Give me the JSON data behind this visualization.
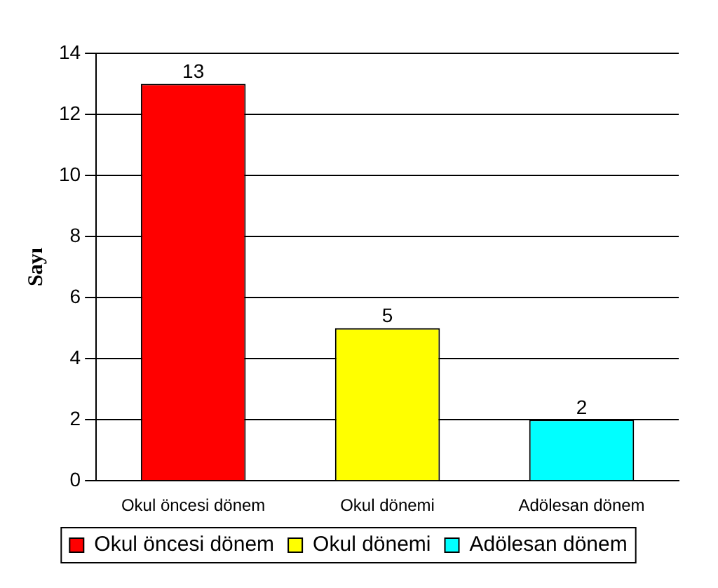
{
  "chart_data": {
    "type": "bar",
    "ylabel": "Sayı",
    "categories": [
      "Okul öncesi dönem",
      "Okul dönemi",
      "Adölesan dönem"
    ],
    "series": [
      {
        "name": "Okul öncesi dönem",
        "color": "#ff0000",
        "values": [
          13,
          null,
          null
        ]
      },
      {
        "name": "Okul dönemi",
        "color": "#ffff00",
        "values": [
          null,
          5,
          null
        ]
      },
      {
        "name": "Adölesan dönem",
        "color": "#00ffff",
        "values": [
          null,
          null,
          2
        ]
      }
    ],
    "ylim": [
      0,
      14
    ],
    "yticks": [
      0,
      2,
      4,
      6,
      8,
      10,
      12,
      14
    ],
    "grid": "y",
    "legend": "bottom",
    "data_labels": true
  }
}
